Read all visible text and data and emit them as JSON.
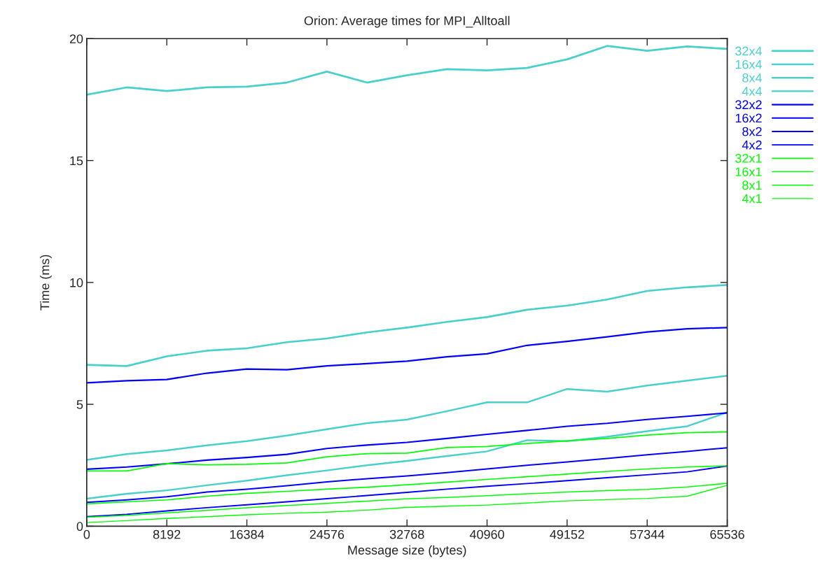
{
  "chart_data": {
    "type": "line",
    "title": "Orion: Average times for MPI_Alltoall",
    "xlabel": "Message size (bytes)",
    "ylabel": "Time (ms)",
    "x": [
      0,
      4096,
      8192,
      12288,
      16384,
      20480,
      24576,
      28672,
      32768,
      36864,
      40960,
      45056,
      49152,
      53248,
      57344,
      61440,
      65536
    ],
    "xlim": [
      0,
      65536
    ],
    "xticks": [
      0,
      8192,
      16384,
      24576,
      32768,
      40960,
      49152,
      57344,
      65536
    ],
    "ylim": [
      0,
      20
    ],
    "yticks": [
      0,
      5,
      10,
      15,
      20
    ],
    "grid": false,
    "legend": "right",
    "marker": "none",
    "line_style": "solid",
    "series": [
      {
        "name": "32x4",
        "color": "#48d1cc",
        "values": [
          17.7,
          18.0,
          17.85,
          18.0,
          18.03,
          18.2,
          18.65,
          18.2,
          18.5,
          18.75,
          18.7,
          18.8,
          19.15,
          19.7,
          19.5,
          19.68,
          19.58
        ]
      },
      {
        "name": "16x4",
        "color": "#48d1cc",
        "values": [
          6.62,
          6.57,
          6.97,
          7.2,
          7.3,
          7.55,
          7.7,
          7.95,
          8.15,
          8.38,
          8.58,
          8.88,
          9.05,
          9.3,
          9.65,
          9.8,
          9.9
        ]
      },
      {
        "name": "8x4",
        "color": "#48d1cc",
        "values": [
          2.72,
          2.96,
          3.11,
          3.32,
          3.49,
          3.72,
          3.98,
          4.23,
          4.37,
          4.72,
          5.08,
          5.08,
          5.63,
          5.52,
          5.77,
          5.97,
          6.17
        ]
      },
      {
        "name": "4x4",
        "color": "#48d1cc",
        "values": [
          1.13,
          1.33,
          1.47,
          1.68,
          1.87,
          2.09,
          2.29,
          2.5,
          2.68,
          2.88,
          3.07,
          3.53,
          3.49,
          3.67,
          3.9,
          4.1,
          4.67
        ]
      },
      {
        "name": "32x2",
        "color": "#0000ff",
        "values": [
          5.88,
          5.97,
          6.02,
          6.28,
          6.45,
          6.42,
          6.58,
          6.67,
          6.77,
          6.95,
          7.07,
          7.42,
          7.58,
          7.77,
          7.97,
          8.1,
          8.15
        ]
      },
      {
        "name": "16x2",
        "color": "#0000ff",
        "values": [
          2.34,
          2.43,
          2.56,
          2.71,
          2.82,
          2.95,
          3.19,
          3.33,
          3.44,
          3.6,
          3.77,
          3.93,
          4.1,
          4.22,
          4.38,
          4.51,
          4.65
        ]
      },
      {
        "name": "8x2",
        "color": "#0000ff",
        "values": [
          0.98,
          1.08,
          1.21,
          1.4,
          1.52,
          1.66,
          1.82,
          1.95,
          2.06,
          2.2,
          2.35,
          2.5,
          2.64,
          2.78,
          2.93,
          3.07,
          3.22
        ]
      },
      {
        "name": "4x2",
        "color": "#0000ff",
        "values": [
          0.39,
          0.49,
          0.63,
          0.76,
          0.88,
          1.0,
          1.13,
          1.26,
          1.39,
          1.52,
          1.64,
          1.75,
          1.87,
          1.99,
          2.11,
          2.23,
          2.47
        ]
      },
      {
        "name": "32x1",
        "color": "#00ff00",
        "values": [
          2.27,
          2.27,
          2.57,
          2.52,
          2.54,
          2.6,
          2.85,
          2.98,
          3.0,
          3.23,
          3.27,
          3.39,
          3.5,
          3.6,
          3.74,
          3.84,
          3.87
        ]
      },
      {
        "name": "16x1",
        "color": "#00ff00",
        "values": [
          0.92,
          1.0,
          1.08,
          1.23,
          1.35,
          1.43,
          1.52,
          1.6,
          1.7,
          1.81,
          1.92,
          2.03,
          2.14,
          2.25,
          2.35,
          2.43,
          2.48
        ]
      },
      {
        "name": "8x1",
        "color": "#00ff00",
        "values": [
          0.37,
          0.44,
          0.55,
          0.65,
          0.76,
          0.85,
          0.94,
          1.03,
          1.12,
          1.18,
          1.25,
          1.33,
          1.4,
          1.46,
          1.51,
          1.61,
          1.76
        ]
      },
      {
        "name": "4x1",
        "color": "#00ff00",
        "values": [
          0.15,
          0.23,
          0.32,
          0.39,
          0.47,
          0.53,
          0.58,
          0.66,
          0.77,
          0.82,
          0.87,
          0.95,
          1.04,
          1.09,
          1.14,
          1.23,
          1.68
        ]
      }
    ]
  }
}
